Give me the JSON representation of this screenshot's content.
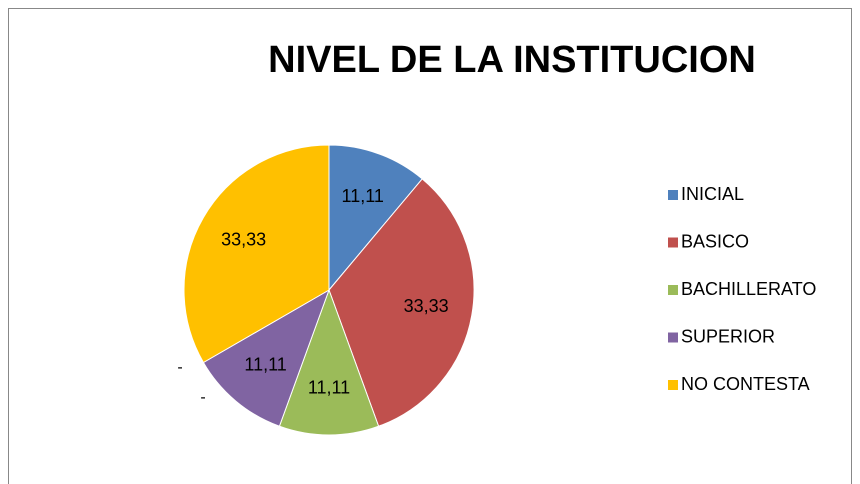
{
  "chart_data": {
    "type": "pie",
    "title": "NIVEL DE LA INSTITUCION",
    "categories": [
      "INICIAL",
      "BASICO",
      "BACHILLERATO",
      "SUPERIOR",
      "NO CONTESTA"
    ],
    "values": [
      11.11,
      33.33,
      11.11,
      11.11,
      33.33
    ],
    "value_labels": [
      "11,11",
      "33,33",
      "11,11",
      "11,11",
      "33,33"
    ],
    "colors": [
      "#4f81bd",
      "#c0504d",
      "#9bbb59",
      "#8064a2",
      "#ffc000"
    ],
    "legend": "right",
    "annotations": [
      "-",
      "-"
    ]
  }
}
